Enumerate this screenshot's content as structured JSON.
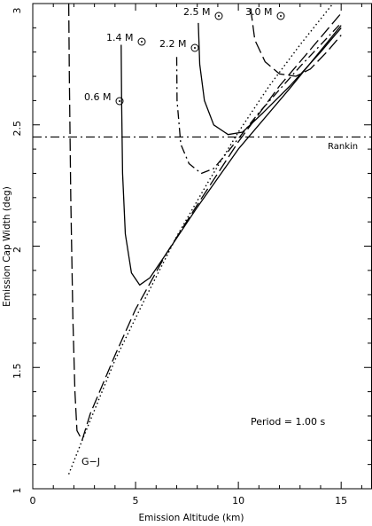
{
  "chart_data": {
    "type": "line",
    "title": "",
    "xlabel": "Emission Altitude (km)",
    "ylabel": "Emission Cap Width (deg)",
    "xlim": [
      0,
      16.5
    ],
    "ylim": [
      1,
      3
    ],
    "x_ticks": [
      0,
      5,
      10,
      15
    ],
    "x_tick_labels": [
      "0",
      "5",
      "10",
      "15"
    ],
    "y_ticks": [
      1,
      1.5,
      2,
      2.5,
      3
    ],
    "y_tick_labels": [
      "1",
      "1.5",
      "2",
      "2.5",
      "3"
    ],
    "grid": false,
    "legend": "none",
    "annotations": {
      "period": "Period =  1.00 s",
      "gj": "G−J",
      "rankin": "Rankin",
      "mass_unit": "M",
      "masses": [
        "0.6",
        "1.4",
        "2.2",
        "2.5",
        "3.0"
      ]
    },
    "reference_lines": [
      {
        "label": "Rankin",
        "orientation": "horizontal",
        "y": 2.45,
        "style": "dash-dot"
      },
      {
        "label": "G−J",
        "style": "dotted",
        "points": [
          [
            1.75,
            1.06
          ],
          [
            2.5,
            1.22
          ],
          [
            4,
            1.53
          ],
          [
            5.5,
            1.79
          ],
          [
            7,
            2.04
          ],
          [
            8.5,
            2.26
          ],
          [
            10,
            2.47
          ],
          [
            11.5,
            2.66
          ],
          [
            13,
            2.83
          ],
          [
            14.6,
            3.0
          ]
        ]
      }
    ],
    "series": [
      {
        "label": "0.6",
        "style": "long-dash",
        "points": [
          [
            1.75,
            3.0
          ],
          [
            1.78,
            2.7
          ],
          [
            1.85,
            2.2
          ],
          [
            1.95,
            1.7
          ],
          [
            2.05,
            1.4
          ],
          [
            2.15,
            1.24
          ],
          [
            2.4,
            1.2
          ],
          [
            2.8,
            1.31
          ],
          [
            4.0,
            1.55
          ],
          [
            5.0,
            1.74
          ],
          [
            6.5,
            1.97
          ],
          [
            8.0,
            2.17
          ],
          [
            10.0,
            2.43
          ],
          [
            12.0,
            2.66
          ],
          [
            15.0,
            2.96
          ]
        ]
      },
      {
        "label": "1.4",
        "style": "solid",
        "points": [
          [
            4.3,
            2.83
          ],
          [
            4.32,
            2.6
          ],
          [
            4.37,
            2.3
          ],
          [
            4.5,
            2.05
          ],
          [
            4.8,
            1.89
          ],
          [
            5.2,
            1.84
          ],
          [
            5.7,
            1.87
          ],
          [
            6.5,
            1.97
          ],
          [
            8.0,
            2.16
          ],
          [
            10.0,
            2.4
          ],
          [
            12.5,
            2.65
          ],
          [
            15.0,
            2.91
          ]
        ]
      },
      {
        "label": "2.2",
        "style": "dash-dot",
        "points": [
          [
            7.0,
            2.78
          ],
          [
            7.02,
            2.6
          ],
          [
            7.2,
            2.42
          ],
          [
            7.6,
            2.34
          ],
          [
            8.2,
            2.3
          ],
          [
            8.8,
            2.32
          ],
          [
            9.5,
            2.39
          ],
          [
            11.0,
            2.55
          ],
          [
            13.0,
            2.74
          ],
          [
            15.0,
            2.92
          ]
        ]
      },
      {
        "label": "2.5",
        "style": "solid",
        "points": [
          [
            8.05,
            2.92
          ],
          [
            8.12,
            2.75
          ],
          [
            8.35,
            2.6
          ],
          [
            8.8,
            2.5
          ],
          [
            9.5,
            2.46
          ],
          [
            10.2,
            2.47
          ],
          [
            11.2,
            2.55
          ],
          [
            12.5,
            2.66
          ],
          [
            14.0,
            2.8
          ],
          [
            15.0,
            2.9
          ]
        ]
      },
      {
        "label": "3.0",
        "style": "long-dash",
        "points": [
          [
            10.6,
            2.98
          ],
          [
            10.8,
            2.85
          ],
          [
            11.3,
            2.76
          ],
          [
            12.0,
            2.71
          ],
          [
            12.8,
            2.7
          ],
          [
            13.5,
            2.73
          ],
          [
            14.3,
            2.8
          ],
          [
            15.0,
            2.87
          ]
        ]
      }
    ]
  }
}
